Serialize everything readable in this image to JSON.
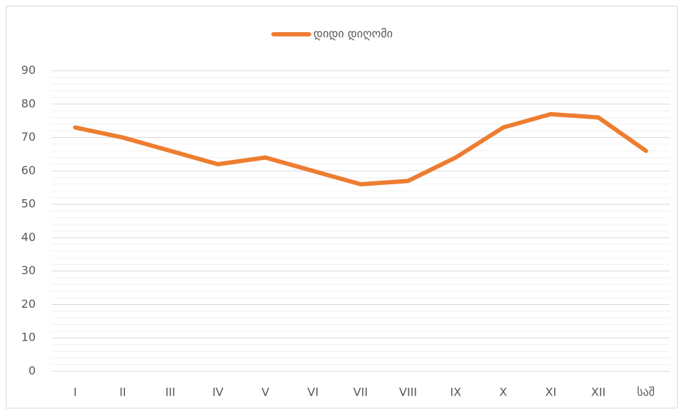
{
  "chart_data": {
    "type": "line",
    "categories": [
      "I",
      "II",
      "III",
      "IV",
      "V",
      "VI",
      "VII",
      "VIII",
      "IX",
      "X",
      "XI",
      "XII",
      "საშ"
    ],
    "series": [
      {
        "name": "დიდი დიღომი",
        "color": "#ed7d31",
        "values": [
          73,
          70,
          66,
          62,
          64,
          60,
          56,
          57,
          64,
          73,
          77,
          76,
          66
        ]
      }
    ],
    "ylim": [
      0,
      90
    ],
    "yticks": [
      0,
      10,
      20,
      30,
      40,
      50,
      60,
      70,
      80,
      90
    ],
    "minor_yticks": [
      2,
      4,
      6,
      8,
      12,
      14,
      16,
      18,
      22,
      24,
      26,
      28,
      32,
      34,
      36,
      38,
      42,
      44,
      46,
      48,
      52,
      54,
      56,
      58,
      62,
      64,
      66,
      68,
      72,
      74,
      76,
      78,
      82,
      84,
      86,
      88
    ],
    "grid": true,
    "legend": "top"
  }
}
